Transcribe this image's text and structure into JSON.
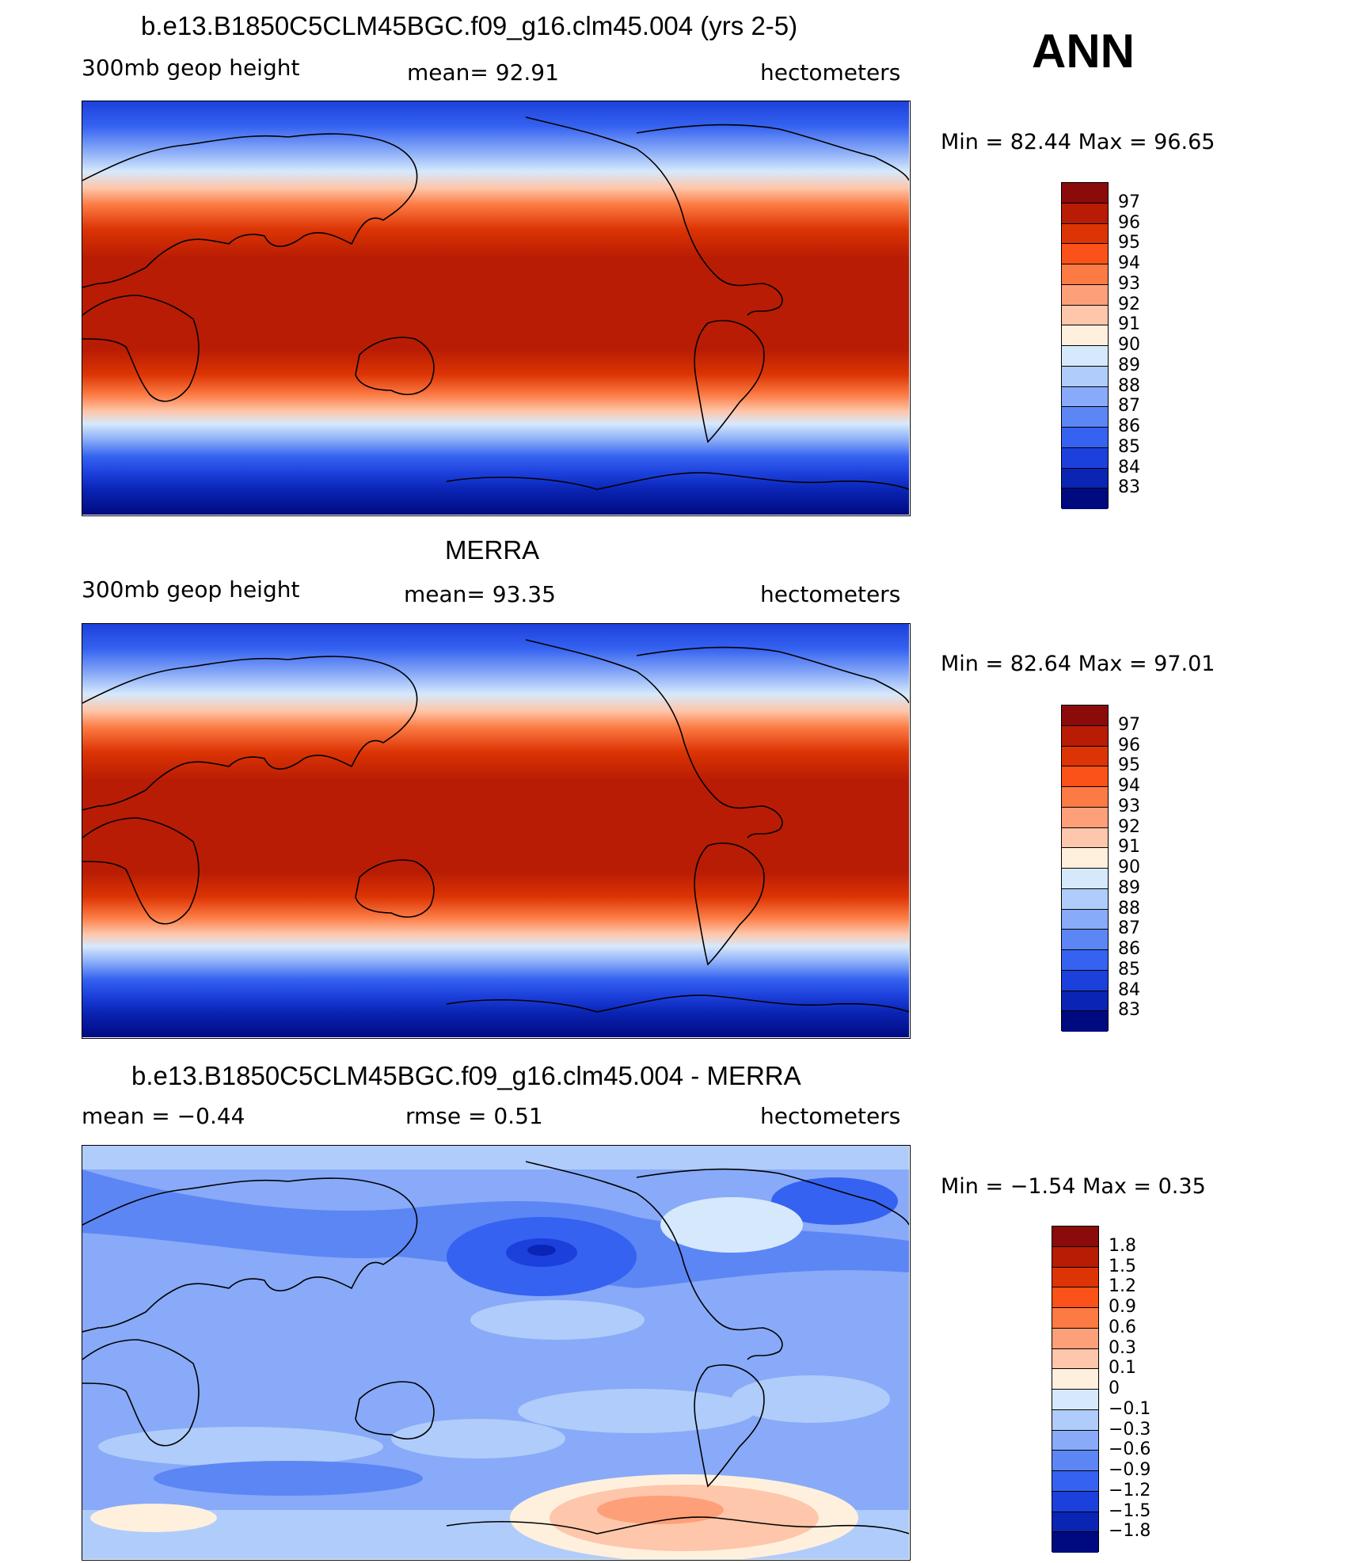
{
  "season": "ANN",
  "panels": [
    {
      "title": "b.e13.B1850C5CLM45BGC.f09_g16.clm45.004 (yrs 2-5)",
      "left_label": "300mb  geop  height",
      "center_label": "mean=   92.91",
      "right_label": "hectometers",
      "minmax": "Min  =    82.44  Max  =    96.65",
      "colorbar": {
        "labels": [
          "97",
          "96",
          "95",
          "94",
          "93",
          "92",
          "91",
          "90",
          "89",
          "88",
          "87",
          "86",
          "85",
          "84",
          "83"
        ],
        "colors": [
          "#8b0a0a",
          "#b81c04",
          "#dc3404",
          "#fa5218",
          "#fc7b44",
          "#fda07a",
          "#fec6aa",
          "#fff0de",
          "#d6e9fc",
          "#b0ccfa",
          "#88aaf8",
          "#5c86f4",
          "#3562f0",
          "#1c40dc",
          "#0a24b4",
          "#000a80"
        ]
      }
    },
    {
      "title": "MERRA",
      "left_label": "300mb  geop  height",
      "center_label": "mean=   93.35",
      "right_label": "hectometers",
      "minmax": "Min  =    82.64  Max  =    97.01",
      "colorbar": {
        "labels": [
          "97",
          "96",
          "95",
          "94",
          "93",
          "92",
          "91",
          "90",
          "89",
          "88",
          "87",
          "86",
          "85",
          "84",
          "83"
        ],
        "colors": [
          "#8b0a0a",
          "#b81c04",
          "#dc3404",
          "#fa5218",
          "#fc7b44",
          "#fda07a",
          "#fec6aa",
          "#fff0de",
          "#d6e9fc",
          "#b0ccfa",
          "#88aaf8",
          "#5c86f4",
          "#3562f0",
          "#1c40dc",
          "#0a24b4",
          "#000a80"
        ]
      }
    },
    {
      "title": "b.e13.B1850C5CLM45BGC.f09_g16.clm45.004 - MERRA",
      "left_label": "mean  =    −0.44",
      "center_label": "rmse  =     0.51",
      "right_label": "hectometers",
      "minmax": "Min  =    −1.54  Max  =     0.35",
      "colorbar": {
        "labels": [
          "1.8",
          "1.5",
          "1.2",
          "0.9",
          "0.6",
          "0.3",
          "0.1",
          "0",
          "−0.1",
          "−0.3",
          "−0.6",
          "−0.9",
          "−1.2",
          "−1.5",
          "−1.8"
        ],
        "colors": [
          "#8b0a0a",
          "#b81c04",
          "#dc3404",
          "#fa5218",
          "#fc7b44",
          "#fda07a",
          "#fec6aa",
          "#fff0de",
          "#d6e9fc",
          "#b0ccfa",
          "#88aaf8",
          "#5c86f4",
          "#3562f0",
          "#1c40dc",
          "#0a24b4",
          "#000a80"
        ]
      }
    }
  ]
}
